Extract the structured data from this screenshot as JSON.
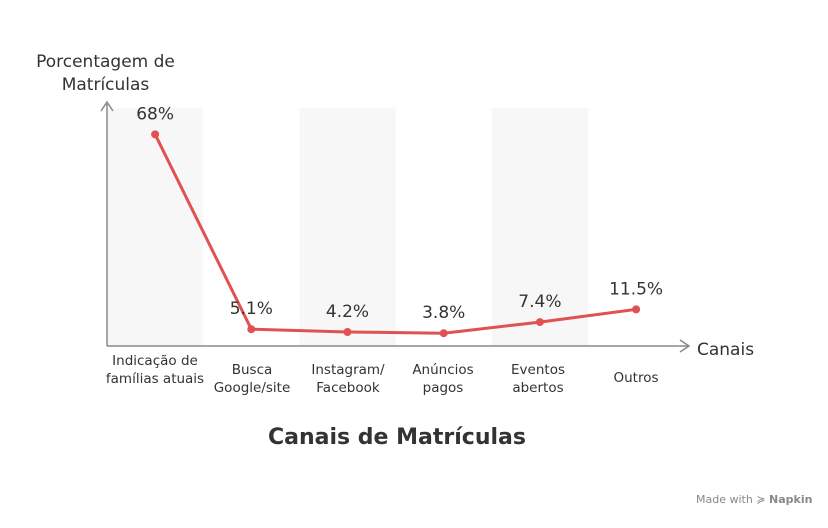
{
  "chart_data": {
    "type": "line",
    "title": "Canais de Matrículas",
    "ylabel": "Porcentagem de Matrículas",
    "xlabel": "Canais",
    "categories": [
      "Indicação de famílias atuais",
      "Busca Google/site",
      "Instagram/ Facebook",
      "Anúncios pagos",
      "Eventos abertos",
      "Outros"
    ],
    "series": [
      {
        "values": [
          68,
          5.1,
          4.2,
          3.8,
          7.4,
          11.5
        ]
      }
    ],
    "data_labels": [
      "68%",
      "5.1%",
      "4.2%",
      "3.8%",
      "7.4%",
      "11.5%"
    ],
    "line_color": "#e05252",
    "band_color": "#f7f7f7",
    "axis_color": "#888888"
  },
  "footer": {
    "made_with": "Made with",
    "brand": "Napkin"
  }
}
